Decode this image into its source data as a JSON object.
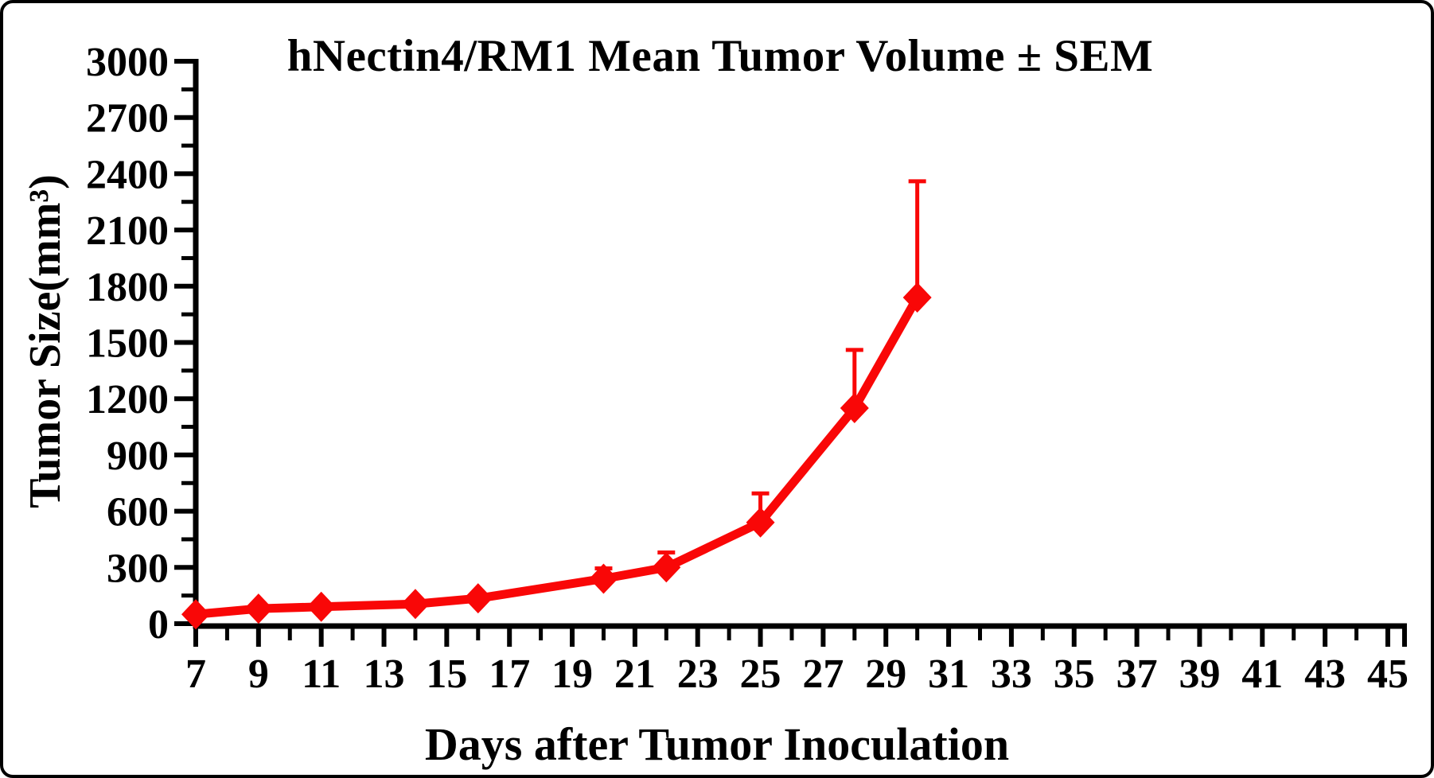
{
  "figure": {
    "background": "#ffffff",
    "frame_color": "#000000"
  },
  "chart_data": {
    "type": "line",
    "title": "hNectin4/RM1 Mean Tumor Volume ± SEM",
    "xlabel": "Days after Tumor Inoculation",
    "ylabel": "Tumor Size(mm³)",
    "grid": false,
    "legend": "none",
    "error_bars": "upper SEM caps only",
    "axis_color": "#000000",
    "series": [
      {
        "name": "hNectin4/RM1 mean tumor volume",
        "color": "#f90707",
        "marker": "diamond",
        "x": [
          7,
          9,
          11,
          14,
          16,
          20,
          22,
          25,
          28,
          30
        ],
        "y": [
          50,
          80,
          90,
          105,
          135,
          240,
          300,
          540,
          1150,
          1740
        ],
        "sem_upper": [
          0,
          0,
          0,
          0,
          0,
          55,
          80,
          155,
          310,
          620
        ]
      }
    ],
    "x_axis": {
      "min": 7,
      "max": 45,
      "major_tick_step": 2,
      "minor_tick_step": 1,
      "tick_labels": [
        "7",
        "9",
        "11",
        "13",
        "15",
        "17",
        "19",
        "21",
        "23",
        "25",
        "27",
        "29",
        "31",
        "33",
        "35",
        "37",
        "39",
        "41",
        "43",
        "45"
      ]
    },
    "y_axis": {
      "min": 0,
      "max": 3000,
      "major_tick_step": 300,
      "minor_tick_step": 150,
      "tick_labels": [
        "0",
        "300",
        "600",
        "900",
        "1200",
        "1500",
        "1800",
        "2100",
        "2400",
        "2700",
        "3000"
      ]
    }
  }
}
